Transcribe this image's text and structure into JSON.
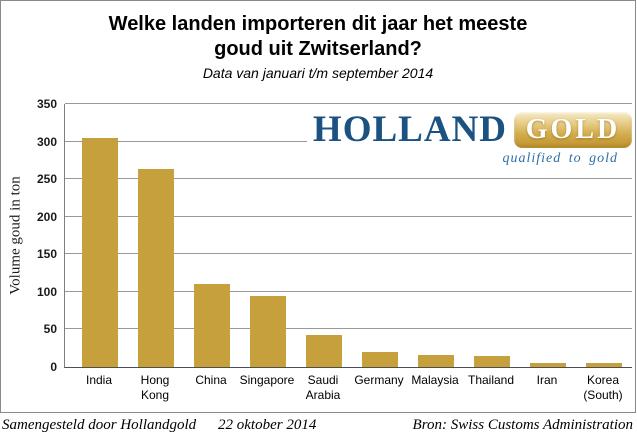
{
  "title": {
    "line1": "Welke landen importeren dit jaar het meeste",
    "line2": "goud uit Zwitserland?",
    "subtitle": "Data van januari t/m september 2014"
  },
  "chart_data": {
    "type": "bar",
    "title": "Welke landen importeren dit jaar het meeste goud uit Zwitserland?",
    "subtitle": "Data van januari t/m september 2014",
    "categories": [
      "India",
      "Hong Kong",
      "China",
      "Singapore",
      "Saudi Arabia",
      "Germany",
      "Malaysia",
      "Thailand",
      "Iran",
      "Korea (South)"
    ],
    "values": [
      305,
      264,
      110,
      94,
      42,
      20,
      16,
      15,
      6,
      6
    ],
    "xlabel": "",
    "ylabel": "Volume goud in ton",
    "ylim": [
      0,
      350
    ],
    "ytick_step": 50,
    "grid": true,
    "legend_position": "none",
    "bar_color": "#C7A03E"
  },
  "logo": {
    "holland": "HOLLAND",
    "gold": "GOLD",
    "tagline": "qualified to gold",
    "holland_color": "#1B5282",
    "gold_badge_color": "#D2AC4C",
    "tagline_color": "#2E6FA6"
  },
  "footer": {
    "left": "Samengesteld door Hollandgold",
    "center": "22 oktober 2014",
    "right": "Bron: Swiss Customs Administration"
  },
  "colors": {
    "bar": "#C7A03E",
    "gridline": "#999999",
    "axis_line": "#7F7F7F",
    "baseline": "#4F4F4F",
    "frame_border": "#8A8A8A",
    "background": "#FFFFFF"
  }
}
